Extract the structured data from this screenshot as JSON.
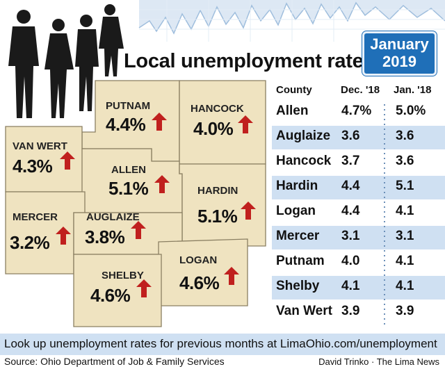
{
  "header": {
    "title": "Local unemployment rates",
    "badge_month": "January",
    "badge_year": "2019"
  },
  "map": {
    "counties": [
      {
        "id": "putnam",
        "name": "PUTNAM",
        "rate": "4.4%",
        "trend": "up"
      },
      {
        "id": "hancock",
        "name": "HANCOCK",
        "rate": "4.0%",
        "trend": "up"
      },
      {
        "id": "vanwert",
        "name": "VAN WERT",
        "rate": "4.3%",
        "trend": "up"
      },
      {
        "id": "allen",
        "name": "ALLEN",
        "rate": "5.1%",
        "trend": "up"
      },
      {
        "id": "hardin",
        "name": "HARDIN",
        "rate": "5.1%",
        "trend": "up"
      },
      {
        "id": "mercer",
        "name": "MERCER",
        "rate": "3.2%",
        "trend": "up"
      },
      {
        "id": "auglaize",
        "name": "AUGLAIZE",
        "rate": "3.8%",
        "trend": "up"
      },
      {
        "id": "logan",
        "name": "LOGAN",
        "rate": "4.6%",
        "trend": "up"
      },
      {
        "id": "shelby",
        "name": "SHELBY",
        "rate": "4.6%",
        "trend": "up"
      }
    ],
    "arrow_color": "#c0201e",
    "land_color": "#efe3c0"
  },
  "table": {
    "headers": {
      "county": "County",
      "dec": "Dec. '18",
      "jan": "Jan. '18"
    },
    "rows": [
      {
        "county": "Allen",
        "dec": "4.7%",
        "jan": "5.0%"
      },
      {
        "county": "Auglaize",
        "dec": "3.6",
        "jan": "3.6"
      },
      {
        "county": "Hancock",
        "dec": "3.7",
        "jan": "3.6"
      },
      {
        "county": "Hardin",
        "dec": "4.4",
        "jan": "5.1"
      },
      {
        "county": "Logan",
        "dec": "4.4",
        "jan": "4.1"
      },
      {
        "county": "Mercer",
        "dec": "3.1",
        "jan": "3.1"
      },
      {
        "county": "Putnam",
        "dec": "4.0",
        "jan": "4.1"
      },
      {
        "county": "Shelby",
        "dec": "4.1",
        "jan": "4.1"
      },
      {
        "county": "Van Wert",
        "dec": "3.9",
        "jan": "3.9"
      }
    ],
    "shade_color": "#cfe0f2"
  },
  "footer": {
    "lookup": "Look up unemployment rates for previous months at LimaOhio.com/unemployment",
    "source": "Source: Ohio Department of Job & Family Services",
    "credit": "David Trinko · The Lima News"
  },
  "icons": [
    "people-silhouettes-icon",
    "up-arrow-icon",
    "trend-line-icon"
  ]
}
